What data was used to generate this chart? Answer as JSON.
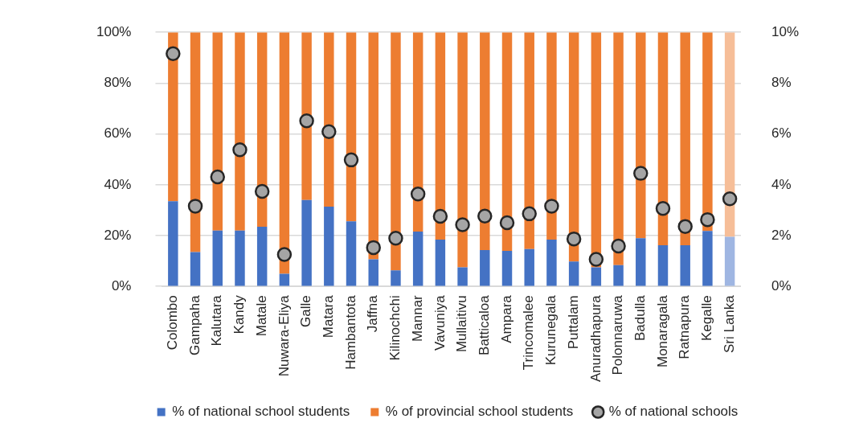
{
  "chart_data": {
    "type": "bar",
    "stacked": true,
    "grid": "y",
    "legend": "bottom",
    "categories": [
      "Colombo",
      "Gampaha",
      "Kalutara",
      "Kandy",
      "Matale",
      "Nuwara-Eliya",
      "Galle",
      "Matara",
      "Hambantota",
      "Jaffna",
      "Kilinochchi",
      "Mannar",
      "Vavuniya",
      "Mullaitivu",
      "Batticaloa",
      "Ampara",
      "Trincomalee",
      "Kurunegala",
      "Puttalam",
      "Anuradhapura",
      "Polonnaruwa",
      "Badulla",
      "Monaragala",
      "Ratnapura",
      "Kegalle",
      "Sri Lanka"
    ],
    "ylim": [
      0,
      100
    ],
    "yticks": [
      {
        "value": 0,
        "label": "0%"
      },
      {
        "value": 20,
        "label": "20%"
      },
      {
        "value": 40,
        "label": "40%"
      },
      {
        "value": 60,
        "label": "60%"
      },
      {
        "value": 80,
        "label": "80%"
      },
      {
        "value": 100,
        "label": "100%"
      }
    ],
    "y2lim": [
      0,
      10
    ],
    "y2ticks": [
      {
        "value": 0,
        "label": "0%"
      },
      {
        "value": 2,
        "label": "2%"
      },
      {
        "value": 4,
        "label": "4%"
      },
      {
        "value": 6,
        "label": "6%"
      },
      {
        "value": 8,
        "label": "8%"
      },
      {
        "value": 10,
        "label": "10%"
      }
    ],
    "series": [
      {
        "name": "% of national school students",
        "color": "#4472c4",
        "colors": [
          "#4472c4",
          "#4472c4",
          "#4472c4",
          "#4472c4",
          "#4472c4",
          "#4472c4",
          "#4472c4",
          "#4472c4",
          "#4472c4",
          "#4472c4",
          "#4472c4",
          "#4472c4",
          "#4472c4",
          "#4472c4",
          "#4472c4",
          "#4472c4",
          "#4472c4",
          "#4472c4",
          "#4472c4",
          "#4472c4",
          "#4472c4",
          "#4472c4",
          "#4472c4",
          "#4472c4",
          "#4472c4",
          "#9fb6e2"
        ],
        "values": [
          33.5,
          13.5,
          22,
          22,
          23.5,
          5,
          34,
          31.4,
          25.6,
          10.7,
          6.3,
          21.6,
          18.4,
          7.5,
          14.3,
          14,
          14.7,
          18.4,
          9.8,
          7.5,
          8.4,
          19,
          16.2,
          16.2,
          21.8,
          19.5
        ]
      },
      {
        "name": "% of provincial school students",
        "color": "#ed7d31",
        "colors": [
          "#ed7d31",
          "#ed7d31",
          "#ed7d31",
          "#ed7d31",
          "#ed7d31",
          "#ed7d31",
          "#ed7d31",
          "#ed7d31",
          "#ed7d31",
          "#ed7d31",
          "#ed7d31",
          "#ed7d31",
          "#ed7d31",
          "#ed7d31",
          "#ed7d31",
          "#ed7d31",
          "#ed7d31",
          "#ed7d31",
          "#ed7d31",
          "#ed7d31",
          "#ed7d31",
          "#ed7d31",
          "#ed7d31",
          "#ed7d31",
          "#ed7d31",
          "#f6be98"
        ],
        "values": [
          66.5,
          86.5,
          78,
          78,
          76.5,
          95,
          66,
          68.6,
          74.4,
          89.3,
          93.7,
          78.4,
          81.6,
          92.5,
          85.7,
          86,
          85.3,
          81.6,
          90.2,
          92.5,
          91.6,
          81,
          83.8,
          83.8,
          78.2,
          80.5
        ]
      },
      {
        "name": "% of national schools",
        "type": "scatter",
        "axis": "y2",
        "marker": "circle",
        "color": "#a5a5a5",
        "x": [
          "Colombo",
          "Gampaha",
          "Kalutara",
          "Kandy",
          "Matale",
          "Nuwara-Eliya",
          "Galle",
          "Matara",
          "Hambantota",
          "Jaffna",
          "Kilinochchi",
          "Mannar",
          "Vavuniya",
          "Mullaitivu",
          "Batticaloa",
          "Ampara",
          "Trincomalee",
          "Kurunegala",
          "Puttalam",
          "Anuradhapura",
          "Polonnaruwa",
          "Badulla",
          "Monaragala",
          "Ratnapura",
          "Kegalle",
          "Sri Lanka"
        ],
        "values": [
          9.16,
          3.16,
          4.31,
          5.38,
          3.74,
          1.26,
          6.52,
          6.09,
          4.98,
          1.53,
          1.9,
          3.64,
          2.76,
          2.43,
          2.77,
          2.51,
          2.86,
          3.16,
          1.87,
          1.07,
          1.59,
          4.45,
          3.07,
          2.36,
          2.63,
          3.45
        ]
      }
    ]
  }
}
